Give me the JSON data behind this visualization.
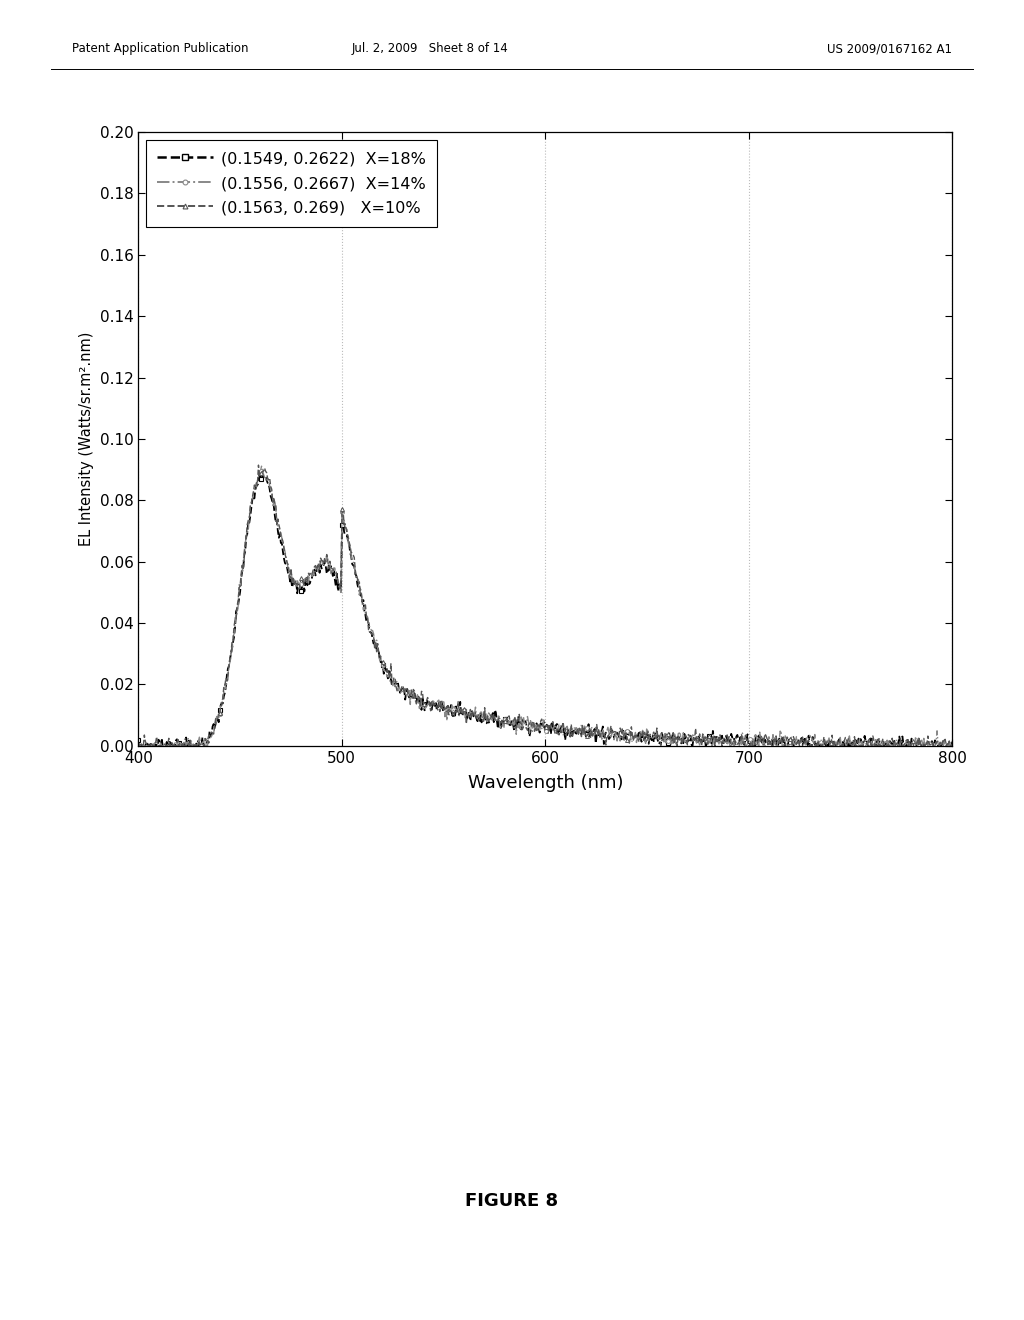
{
  "title": "",
  "xlabel": "Wavelength (nm)",
  "ylabel": "EL Intensity (Watts/sr.m².nm)",
  "xlim": [
    400,
    800
  ],
  "ylim": [
    0.0,
    0.2
  ],
  "xticks": [
    400,
    500,
    600,
    700,
    800
  ],
  "yticks": [
    0.0,
    0.02,
    0.04,
    0.06,
    0.08,
    0.1,
    0.12,
    0.14,
    0.16,
    0.18,
    0.2
  ],
  "legend": [
    {
      "label": "(0.1549, 0.2622)  X=18%",
      "color": "#000000"
    },
    {
      "label": "(0.1556, 0.2667)  X=14%",
      "color": "#777777"
    },
    {
      "label": "(0.1563, 0.269)   X=10%",
      "color": "#444444"
    }
  ],
  "header_left": "Patent Application Publication",
  "header_mid": "Jul. 2, 2009   Sheet 8 of 14",
  "header_right": "US 2009/0167162 A1",
  "figure_label": "FIGURE 8",
  "background_color": "#ffffff",
  "grid_color": "#bbbbbb"
}
